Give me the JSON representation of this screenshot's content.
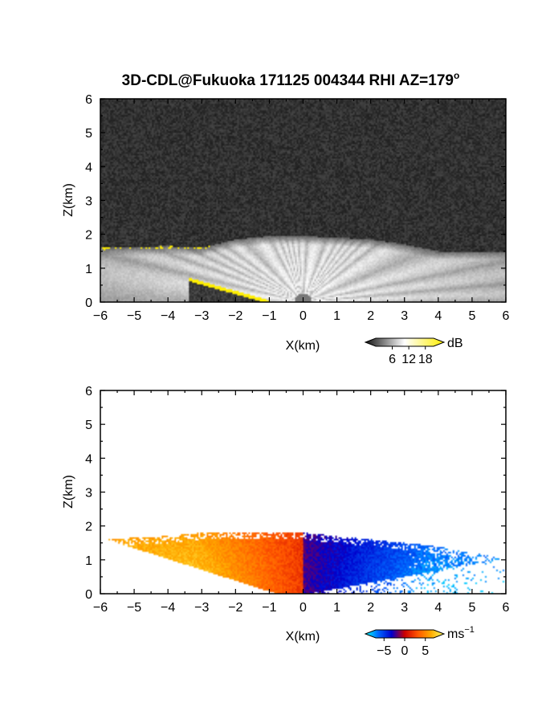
{
  "chart_data": [
    {
      "type": "heatmap",
      "title": "3D-CDL@Fukuoka 171125 004344 RHI AZ=179",
      "title_superscript": "o",
      "xlabel": "X(km)",
      "ylabel": "Z(km)",
      "xlim": [
        -6,
        6
      ],
      "ylim": [
        0,
        6
      ],
      "xticks": [
        "-6",
        "-5",
        "-4",
        "-3",
        "-2",
        "-1",
        "0",
        "1",
        "2",
        "3",
        "4",
        "5",
        "6"
      ],
      "yticks": [
        "0",
        "1",
        "2",
        "3",
        "4",
        "5",
        "6"
      ],
      "field": "signal-to-noise ratio",
      "colormap": "grayscale-with-yellow-top",
      "colorbar": {
        "unit": "dB",
        "ticks": [
          "6",
          "12",
          "18"
        ],
        "range": [
          0,
          21
        ],
        "colors": [
          "#111111",
          "#ffffff",
          "#ffee00"
        ]
      },
      "features": {
        "noise_background": true,
        "data_top_height_km": {
          "x": [
            -6,
            -4,
            -3,
            -2,
            -1,
            0,
            1,
            2,
            3,
            4
          ],
          "z": [
            1.6,
            1.65,
            1.6,
            1.85,
            1.95,
            1.95,
            1.9,
            1.85,
            1.7,
            1.5
          ]
        },
        "near_ground_yellow_edge": {
          "x": [
            -3.3,
            -2,
            -1
          ],
          "z": [
            0.55,
            0.2,
            0.0
          ]
        }
      }
    },
    {
      "type": "heatmap",
      "xlabel": "X(km)",
      "ylabel": "Z(km)",
      "xlim": [
        -6,
        6
      ],
      "ylim": [
        0,
        6
      ],
      "xticks": [
        "-6",
        "-5",
        "-4",
        "-3",
        "-2",
        "-1",
        "0",
        "1",
        "2",
        "3",
        "4",
        "5",
        "6"
      ],
      "yticks": [
        "0",
        "1",
        "2",
        "3",
        "4",
        "5",
        "6"
      ],
      "field": "radial velocity",
      "colormap": "cyan-blue-red-orange-yellow",
      "colorbar": {
        "unit": "ms",
        "unit_superscript": "−1",
        "ticks": [
          "−5",
          "0",
          "5"
        ],
        "range": [
          -7,
          7
        ],
        "colors": [
          "#00ffff",
          "#0066ff",
          "#0000cc",
          "#cc0000",
          "#ff5500",
          "#ffaa00",
          "#ffff66"
        ]
      },
      "features": {
        "data_top_height_km": {
          "x": [
            -6,
            -4,
            -3,
            -2,
            -1,
            0,
            1,
            2,
            3,
            4,
            5,
            5.7
          ],
          "z": [
            1.6,
            1.7,
            1.8,
            1.8,
            1.8,
            1.8,
            1.7,
            1.6,
            1.5,
            1.4,
            1.2,
            1.1
          ]
        },
        "velocity_range_ms": [
          -7,
          7
        ]
      }
    }
  ]
}
